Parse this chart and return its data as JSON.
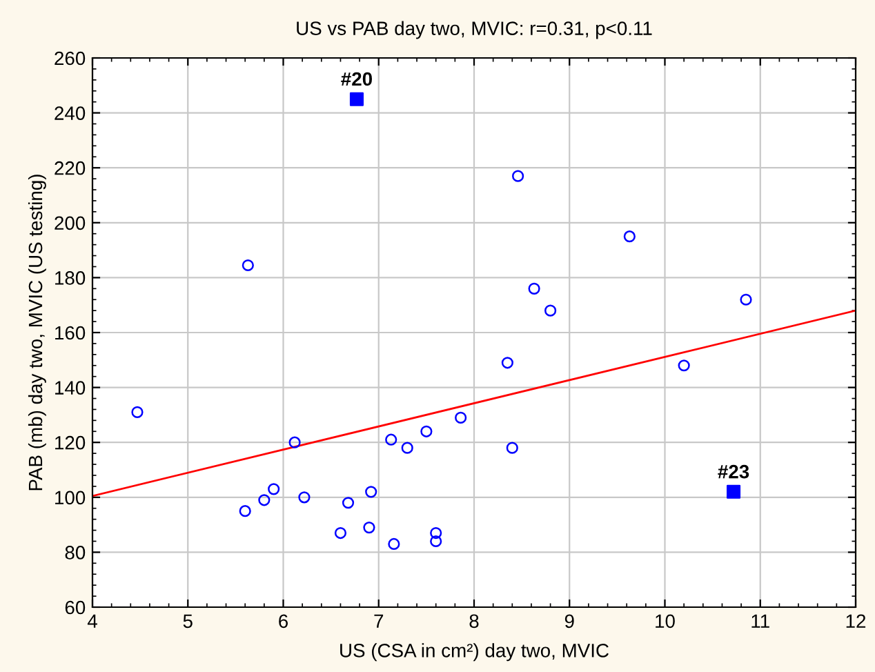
{
  "chart_data": {
    "type": "scatter",
    "title": "US vs PAB day two, MVIC: r=0.31, p<0.11",
    "xlabel": "US (CSA in cm²) day two, MVIC",
    "ylabel": "PAB (mb) day two, MVIC (US testing)",
    "xlim": [
      4,
      12
    ],
    "xticks": [
      4,
      5,
      6,
      7,
      8,
      9,
      10,
      11,
      12
    ],
    "ylim": [
      60,
      260
    ],
    "yticks": [
      60,
      80,
      100,
      120,
      140,
      160,
      180,
      200,
      220,
      240,
      260
    ],
    "grid": true,
    "series": [
      {
        "marker": "circle",
        "color": "#0000ff",
        "x": [
          4.47,
          5.63,
          5.6,
          5.8,
          5.9,
          6.12,
          6.22,
          6.6,
          6.68,
          6.9,
          6.92,
          7.13,
          7.16,
          7.3,
          7.5,
          7.6,
          7.6,
          7.86,
          8.35,
          8.4,
          8.46,
          8.63,
          8.8,
          9.63,
          10.2,
          10.85
        ],
        "values": [
          131,
          184.5,
          95,
          99,
          103,
          120,
          100,
          87,
          98,
          89,
          102,
          121,
          83,
          118,
          124,
          87,
          84,
          129,
          149,
          118,
          217,
          176,
          168,
          195,
          148,
          172
        ]
      },
      {
        "marker": "square",
        "color": "#0000ff",
        "x": [
          6.77,
          10.72
        ],
        "values": [
          245,
          102
        ]
      },
      {
        "type": "line",
        "color": "#ff0000",
        "x": [
          4,
          12
        ],
        "values": [
          100.5,
          168
        ]
      }
    ],
    "annotations": [
      {
        "text": "#20",
        "x": 6.77,
        "y": 245
      },
      {
        "text": "#23",
        "x": 10.72,
        "y": 102
      }
    ]
  }
}
